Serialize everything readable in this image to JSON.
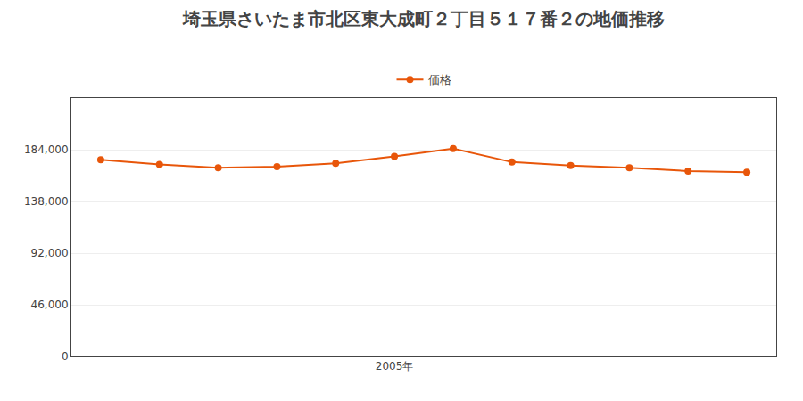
{
  "chart_data": {
    "type": "line",
    "title": "埼玉県さいたま市北区東大成町２丁目５１７番２の地価推移",
    "x": [
      2000,
      2001,
      2002,
      2003,
      2004,
      2005,
      2006,
      2007,
      2008,
      2009,
      2010,
      2011
    ],
    "series": [
      {
        "name": "価格",
        "color": "#e8560a",
        "marker": "circle",
        "line_style": "solid",
        "values": [
          175000,
          171000,
          168000,
          169000,
          172000,
          178000,
          185000,
          173000,
          170000,
          168000,
          165000,
          164000
        ]
      }
    ],
    "xlim": [
      1999.5,
      2011.5
    ],
    "xticks": [
      {
        "value": 2005,
        "label": "2005年"
      }
    ],
    "ylim": [
      0,
      230000
    ],
    "yticks": [
      0,
      {
        "value": 46000,
        "label": "46,000"
      },
      {
        "value": 92000,
        "label": "92,000"
      },
      {
        "value": 138000,
        "label": "138,000"
      },
      {
        "value": 184000,
        "label": "184,000"
      }
    ],
    "grid": "y",
    "legend": "top"
  }
}
